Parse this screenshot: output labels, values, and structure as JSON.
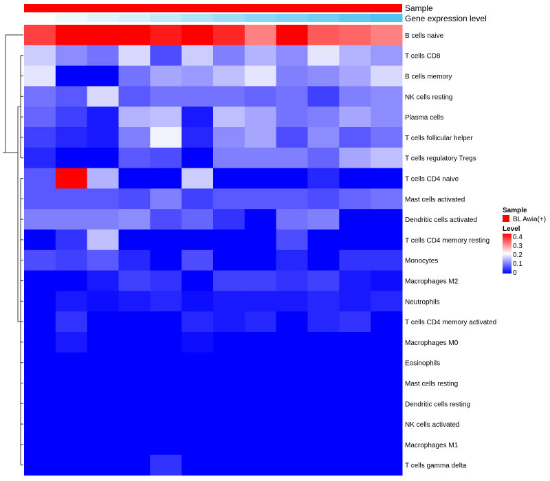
{
  "chart_data": {
    "type": "heatmap",
    "annotation_rows": [
      "Sample",
      "Gene expression level"
    ],
    "row_labels": [
      "B cells naive",
      "T cells CD8",
      "B cells memory",
      "NK cells resting",
      "Plasma cells",
      "T cells follicular helper",
      "T cells regulatory  Tregs",
      "T cells CD4 naive",
      "Mast cells activated",
      "Dendritic cells activated",
      "T cells CD4 memory resting",
      "Monocytes",
      "Macrophages M2",
      "Neutrophils",
      "T cells CD4 memory activated",
      "Macrophages M0",
      "Eosinophils",
      "Mast cells resting",
      "Dendritic cells resting",
      "NK cells activated",
      "Macrophages M1",
      "T cells gamma delta"
    ],
    "values": [
      [
        0.35,
        0.4,
        0.42,
        0.4,
        0.38,
        0.42,
        0.37,
        0.3,
        0.43,
        0.33,
        0.32,
        0.3
      ],
      [
        0.16,
        0.11,
        0.09,
        0.17,
        0.06,
        0.16,
        0.1,
        0.14,
        0.11,
        0.18,
        0.14,
        0.12
      ],
      [
        0.18,
        0.0,
        0.0,
        0.09,
        0.13,
        0.12,
        0.15,
        0.18,
        0.1,
        0.11,
        0.13,
        0.17
      ],
      [
        0.09,
        0.07,
        0.17,
        0.07,
        0.09,
        0.09,
        0.09,
        0.08,
        0.09,
        0.05,
        0.1,
        0.11
      ],
      [
        0.08,
        0.05,
        0.02,
        0.14,
        0.15,
        0.02,
        0.15,
        0.13,
        0.09,
        0.1,
        0.13,
        0.11
      ],
      [
        0.05,
        0.03,
        0.02,
        0.1,
        0.19,
        0.03,
        0.11,
        0.13,
        0.06,
        0.11,
        0.07,
        0.09
      ],
      [
        0.03,
        0.0,
        0.0,
        0.07,
        0.06,
        0.0,
        0.1,
        0.1,
        0.1,
        0.08,
        0.13,
        0.15
      ],
      [
        0.07,
        0.4,
        0.14,
        0.0,
        0.0,
        0.16,
        0.0,
        0.0,
        0.0,
        0.03,
        0.0,
        0.0
      ],
      [
        0.07,
        0.07,
        0.07,
        0.06,
        0.1,
        0.05,
        0.07,
        0.07,
        0.07,
        0.06,
        0.08,
        0.09
      ],
      [
        0.1,
        0.1,
        0.1,
        0.11,
        0.06,
        0.08,
        0.04,
        0.0,
        0.09,
        0.1,
        0.0,
        0.0
      ],
      [
        0.0,
        0.04,
        0.15,
        0.0,
        0.0,
        0.0,
        0.0,
        0.0,
        0.06,
        0.0,
        0.0,
        0.0
      ],
      [
        0.06,
        0.05,
        0.07,
        0.03,
        0.0,
        0.06,
        0.0,
        0.0,
        0.03,
        0.0,
        0.04,
        0.04
      ],
      [
        0.0,
        0.0,
        0.02,
        0.05,
        0.04,
        0.0,
        0.05,
        0.05,
        0.04,
        0.05,
        0.02,
        0.01
      ],
      [
        0.0,
        0.02,
        0.01,
        0.02,
        0.03,
        0.01,
        0.02,
        0.02,
        0.02,
        0.03,
        0.02,
        0.03
      ],
      [
        0.0,
        0.04,
        0.0,
        0.0,
        0.0,
        0.03,
        0.02,
        0.03,
        0.0,
        0.03,
        0.04,
        0.0
      ],
      [
        0.0,
        0.02,
        0.0,
        0.0,
        0.0,
        0.01,
        0.0,
        0.0,
        0.0,
        0.0,
        0.0,
        0.0
      ],
      [
        0.0,
        0.0,
        0.0,
        0.0,
        0.0,
        0.0,
        0.0,
        0.0,
        0.0,
        0.0,
        0.0,
        0.0
      ],
      [
        0.0,
        0.0,
        0.0,
        0.0,
        0.0,
        0.0,
        0.0,
        0.0,
        0.0,
        0.0,
        0.0,
        0.0
      ],
      [
        0.0,
        0.0,
        0.0,
        0.0,
        0.0,
        0.0,
        0.0,
        0.0,
        0.0,
        0.0,
        0.0,
        0.0
      ],
      [
        0.0,
        0.0,
        0.0,
        0.0,
        0.0,
        0.0,
        0.0,
        0.0,
        0.0,
        0.0,
        0.0,
        0.0
      ],
      [
        0.0,
        0.0,
        0.0,
        0.0,
        0.0,
        0.0,
        0.0,
        0.0,
        0.0,
        0.0,
        0.0,
        0.0
      ],
      [
        0.0,
        0.0,
        0.0,
        0.0,
        0.04,
        0.0,
        0.0,
        0.0,
        0.0,
        0.0,
        0.0,
        0.0
      ]
    ],
    "gene_expression_level": [
      0.0,
      0.1,
      0.18,
      0.25,
      0.35,
      0.45,
      0.55,
      0.65,
      0.72,
      0.8,
      0.9,
      1.0
    ],
    "color_scale": {
      "min": 0,
      "max": 0.4,
      "low": "#0000FF",
      "mid": "#FFFFFF",
      "high": "#FF0000",
      "midpoint": 0.2,
      "ticks": [
        "0.4",
        "0.3",
        "0.2",
        "0.1",
        "0"
      ]
    },
    "sample_color": "#FF0000",
    "gene_level_low": "#FFFFFF",
    "gene_level_high": "#4DC3EE",
    "legend": {
      "sample_title": "Sample",
      "sample_entry": "BL Awia(+)",
      "level_title": "Level"
    },
    "dendrogram": "left"
  }
}
